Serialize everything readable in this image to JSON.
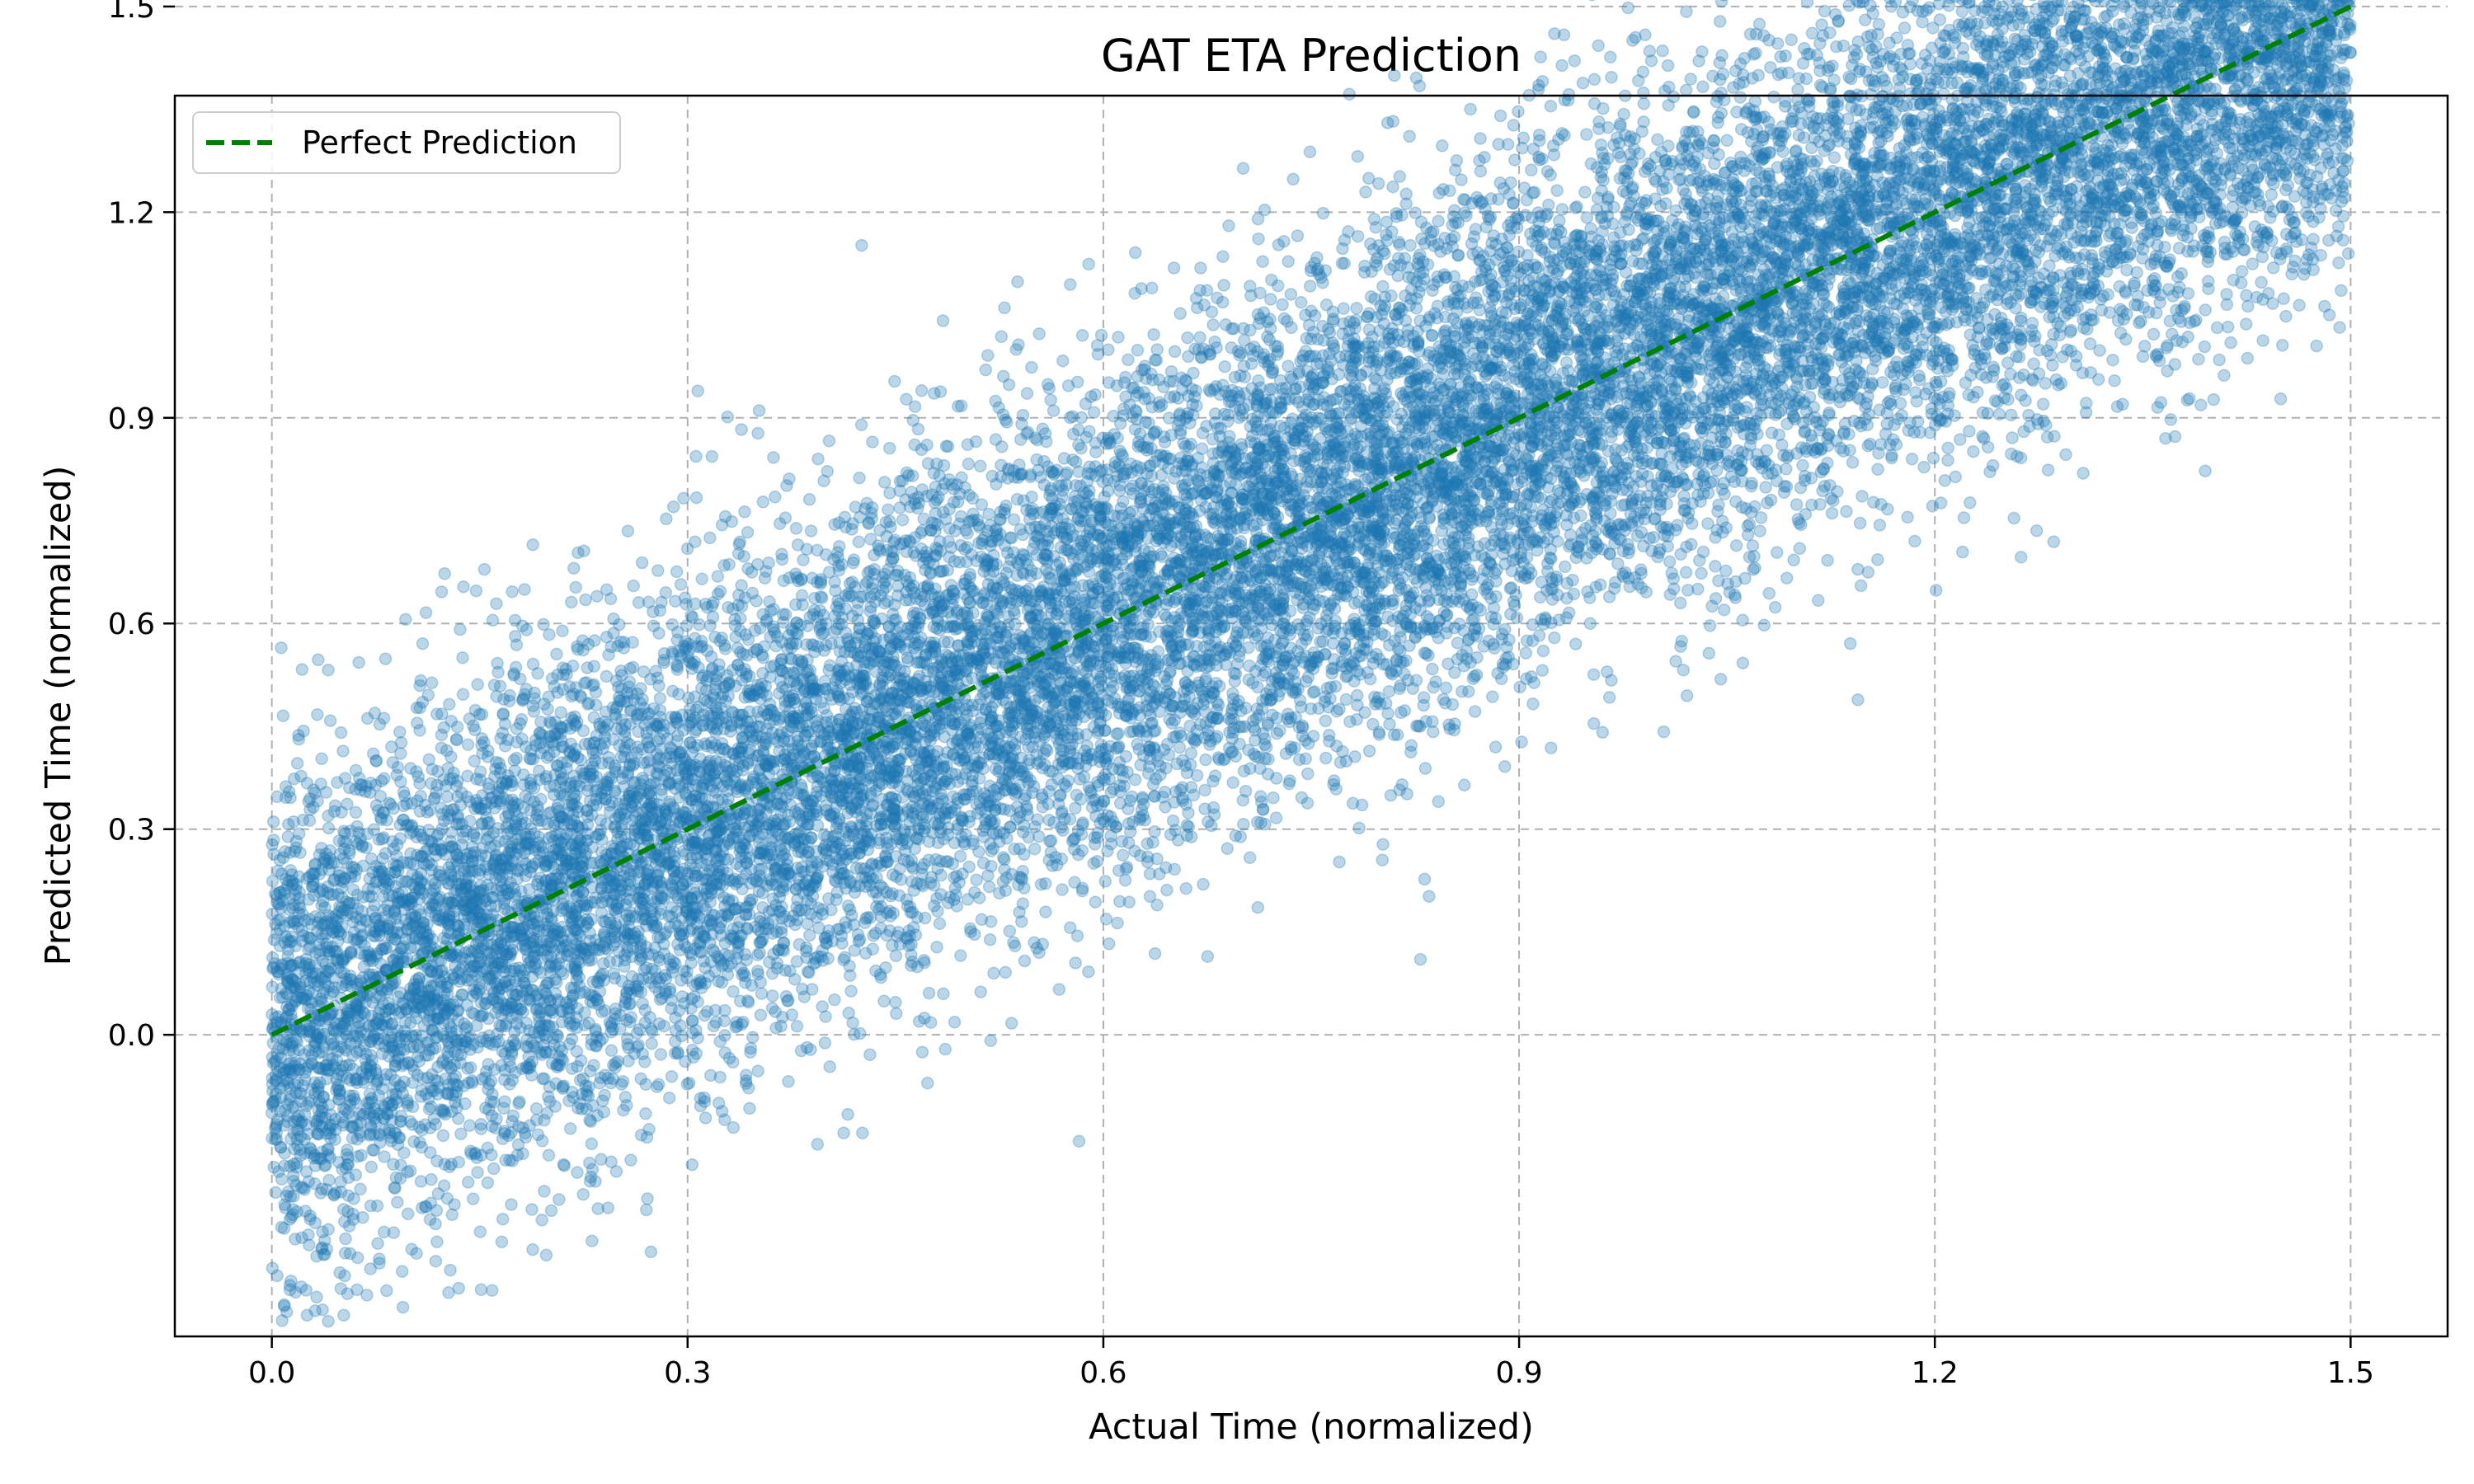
{
  "chart_data": {
    "type": "scatter",
    "title": "GAT ETA Prediction",
    "xlabel": "Actual Time (normalized)",
    "ylabel": "Predicted Time (normalized)",
    "xlim": [
      -0.07,
      1.57
    ],
    "ylim": [
      -0.44,
      1.37
    ],
    "xticks": [
      0.0,
      0.3,
      0.6,
      0.9,
      1.2,
      1.5
    ],
    "yticks": [
      0.0,
      0.3,
      0.6,
      0.9,
      1.2,
      1.5
    ],
    "xtick_labels": [
      "0.0",
      "0.3",
      "0.6",
      "0.9",
      "1.2",
      "1.5"
    ],
    "ytick_labels": [
      "0.0",
      "0.3",
      "0.6",
      "0.9",
      "1.2",
      "1.5"
    ],
    "grid": true,
    "legend": {
      "placement": "top-left",
      "entries": [
        "Perfect Prediction"
      ]
    },
    "series": [
      {
        "kind": "scatter",
        "color": "#1f77b4",
        "opacity": 0.3,
        "x_range": [
          0.0,
          1.5
        ],
        "trend": "y ≈ x",
        "spread_sd": 0.18,
        "y_range": [
          -0.42,
          1.75
        ],
        "approx_count": 20000
      },
      {
        "kind": "line",
        "name": "Perfect Prediction",
        "style": "dashed",
        "color": "#008000",
        "x": [
          0.0,
          1.5
        ],
        "y": [
          0.0,
          1.5
        ]
      }
    ]
  }
}
